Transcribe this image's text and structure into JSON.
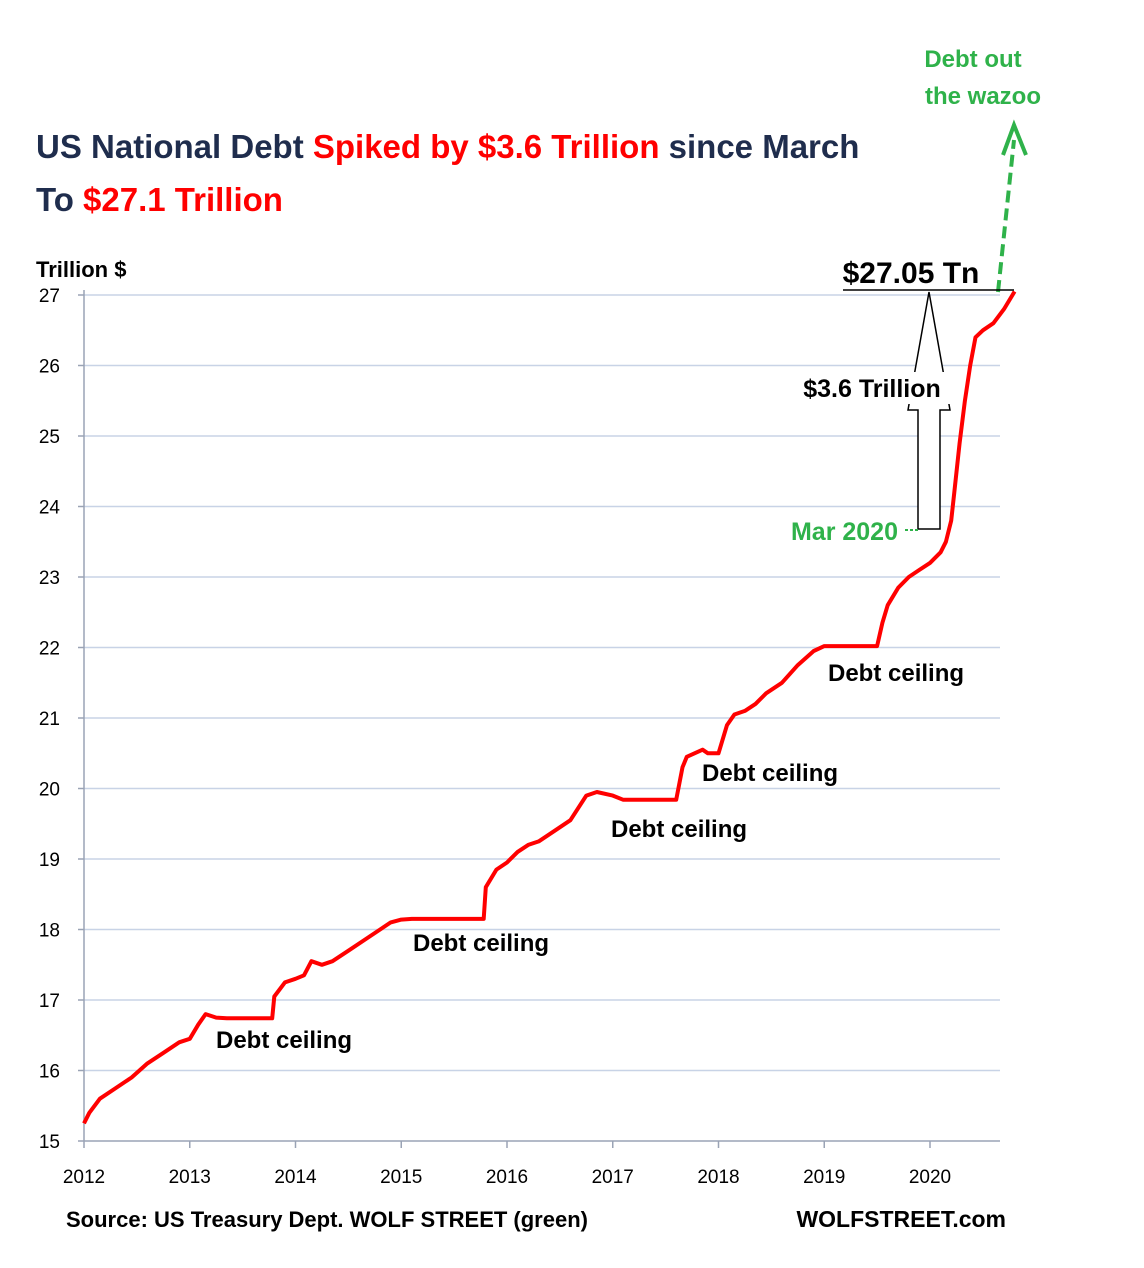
{
  "chart_data": {
    "type": "line",
    "title_parts": [
      {
        "text": "US National Debt ",
        "color": "#1f2d4d"
      },
      {
        "text": "Spiked by $3.6 Trillion",
        "color": "#ff0000"
      },
      {
        "text": " since March",
        "color": "#1f2d4d"
      }
    ],
    "title_line2_parts": [
      {
        "text": "To ",
        "color": "#1f2d4d"
      },
      {
        "text": "$27.1 Trillion",
        "color": "#ff0000"
      }
    ],
    "ylabel": "Trillion $",
    "ylim": [
      15,
      27
    ],
    "yticks": [
      "15",
      "16",
      "17",
      "18",
      "19",
      "20",
      "21",
      "22",
      "23",
      "24",
      "25",
      "26",
      "27"
    ],
    "xlim": [
      2012,
      2020.83
    ],
    "xticks": [
      "2012",
      "2013",
      "2014",
      "2015",
      "2016",
      "2017",
      "2018",
      "2019",
      "2020"
    ],
    "grid": true,
    "series": [
      {
        "name": "US National Debt",
        "color": "#ff0000",
        "x": [
          2012.0,
          2012.05,
          2012.15,
          2012.3,
          2012.45,
          2012.6,
          2012.75,
          2012.9,
          2013.0,
          2013.08,
          2013.15,
          2013.25,
          2013.35,
          2013.5,
          2013.65,
          2013.78,
          2013.8,
          2013.9,
          2014.0,
          2014.08,
          2014.15,
          2014.25,
          2014.35,
          2014.5,
          2014.65,
          2014.8,
          2014.9,
          2015.0,
          2015.1,
          2015.5,
          2015.78,
          2015.8,
          2015.9,
          2016.0,
          2016.1,
          2016.2,
          2016.3,
          2016.45,
          2016.6,
          2016.75,
          2016.85,
          2017.0,
          2017.1,
          2017.4,
          2017.6,
          2017.66,
          2017.7,
          2017.85,
          2017.9,
          2018.0,
          2018.08,
          2018.15,
          2018.25,
          2018.35,
          2018.45,
          2018.6,
          2018.75,
          2018.9,
          2019.0,
          2019.08,
          2019.3,
          2019.5,
          2019.55,
          2019.6,
          2019.7,
          2019.8,
          2019.9,
          2020.0,
          2020.1,
          2020.15,
          2020.2,
          2020.23,
          2020.28,
          2020.33,
          2020.38,
          2020.43,
          2020.5,
          2020.6,
          2020.7,
          2020.8
        ],
        "values": [
          15.25,
          15.4,
          15.6,
          15.75,
          15.9,
          16.1,
          16.25,
          16.4,
          16.45,
          16.65,
          16.8,
          16.75,
          16.74,
          16.74,
          16.74,
          16.74,
          17.05,
          17.25,
          17.3,
          17.35,
          17.55,
          17.5,
          17.55,
          17.7,
          17.85,
          18.0,
          18.1,
          18.14,
          18.15,
          18.15,
          18.15,
          18.6,
          18.85,
          18.95,
          19.1,
          19.2,
          19.25,
          19.4,
          19.55,
          19.9,
          19.95,
          19.9,
          19.84,
          19.84,
          19.84,
          20.3,
          20.45,
          20.55,
          20.5,
          20.5,
          20.9,
          21.05,
          21.1,
          21.2,
          21.35,
          21.5,
          21.75,
          21.95,
          22.02,
          22.02,
          22.02,
          22.02,
          22.35,
          22.6,
          22.85,
          23.0,
          23.1,
          23.2,
          23.35,
          23.5,
          23.8,
          24.2,
          24.9,
          25.5,
          26.0,
          26.4,
          26.5,
          26.6,
          26.8,
          27.05
        ]
      }
    ],
    "annotations": {
      "debt_ceiling": "Debt ceiling",
      "mar_2020": "Mar 2020",
      "increase": "$3.6 Trillion",
      "end_value": "$27.05 Tn",
      "wazoo_line1": "Debt out",
      "wazoo_line2": "the wazoo"
    },
    "source": "Source: US Treasury Dept. WOLF STREET (green)",
    "brand": "WOLFSTREET.com",
    "colors": {
      "line": "#ff0000",
      "grid": "#c8d3e6",
      "green": "#2fb24a",
      "navy": "#1f2d4d"
    }
  }
}
